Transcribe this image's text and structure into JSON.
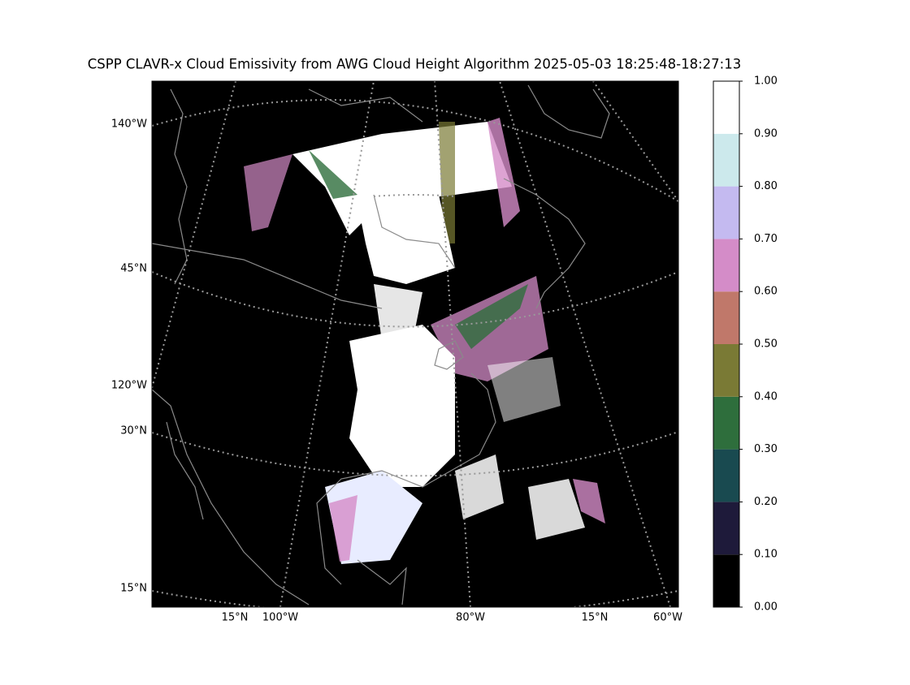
{
  "title": "CSPP CLAVR-x Cloud Emissivity from AWG Cloud Height Algorithm 2025-05-03 18:25:48-18:27:13",
  "map": {
    "left_labels": [
      "140°W",
      "45°N",
      "120°W",
      "30°N",
      "15°N"
    ],
    "bottom_labels": [
      "15°N",
      "100°W",
      "80°W",
      "15°N",
      "60°W"
    ]
  },
  "colorbar": {
    "ticks": [
      {
        "value": 0,
        "label": "0.00"
      },
      {
        "value": 0.1,
        "label": "0.10"
      },
      {
        "value": 0.2,
        "label": "0.20"
      },
      {
        "value": 0.3,
        "label": "0.30"
      },
      {
        "value": 0.4,
        "label": "0.40"
      },
      {
        "value": 0.5,
        "label": "0.50"
      },
      {
        "value": 0.6,
        "label": "0.60"
      },
      {
        "value": 0.7,
        "label": "0.70"
      },
      {
        "value": 0.8,
        "label": "0.80"
      },
      {
        "value": 0.9,
        "label": "0.90"
      },
      {
        "value": 1,
        "label": "1.00"
      }
    ],
    "colors": [
      "#000000",
      "#1e1a3a",
      "#194a50",
      "#2e6e3c",
      "#7a7a35",
      "#c0786a",
      "#d48cc8",
      "#c4baf0",
      "#cce9ec",
      "#ffffff"
    ]
  }
}
